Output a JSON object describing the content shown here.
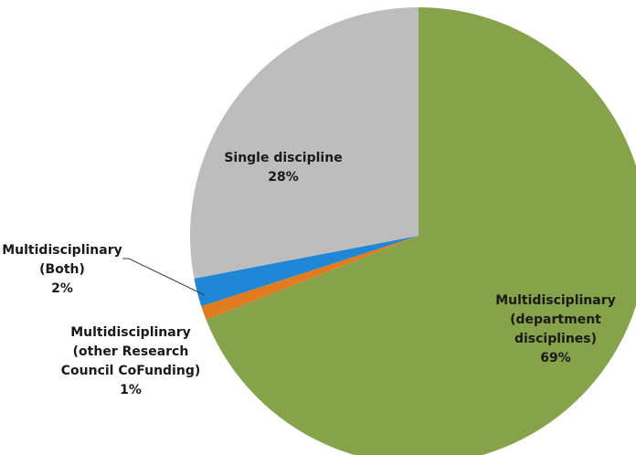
{
  "chart_data": {
    "type": "pie",
    "title": "",
    "slices": [
      {
        "label_lines": [
          "Multidisciplinary",
          "(department",
          "disciplines)"
        ],
        "value_text": "69%",
        "value": 69,
        "color": "#86a24b"
      },
      {
        "label_lines": [
          "Multidisciplinary",
          "(other Research",
          "Council CoFunding)"
        ],
        "value_text": "1%",
        "value": 1,
        "color": "#e07b20"
      },
      {
        "label_lines": [
          "Multidisciplinary",
          "(Both)"
        ],
        "value_text": "2%",
        "value": 2,
        "color": "#1f87d6"
      },
      {
        "label_lines": [
          "Single discipline"
        ],
        "value_text": "28%",
        "value": 28,
        "color": "#bdbdbd"
      }
    ],
    "start": "12 o'clock",
    "direction": "clockwise",
    "legend": "none"
  }
}
